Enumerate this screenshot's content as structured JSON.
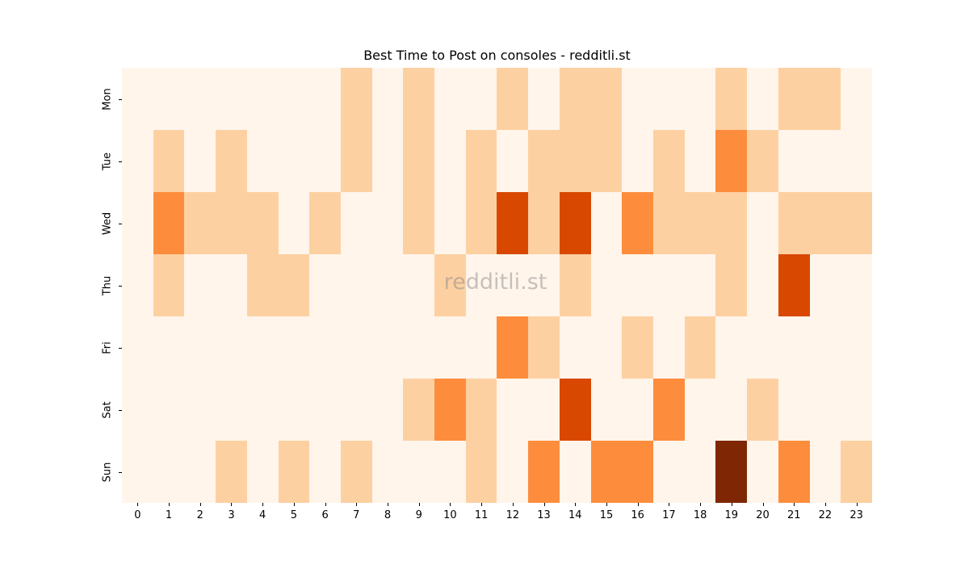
{
  "chart_data": {
    "type": "heatmap",
    "title": "Best Time to Post on consoles - redditli.st",
    "xlabel": "",
    "ylabel": "",
    "x": [
      "0",
      "1",
      "2",
      "3",
      "4",
      "5",
      "6",
      "7",
      "8",
      "9",
      "10",
      "11",
      "12",
      "13",
      "14",
      "15",
      "16",
      "17",
      "18",
      "19",
      "20",
      "21",
      "22",
      "23"
    ],
    "y": [
      "Mon",
      "Tue",
      "Wed",
      "Thu",
      "Fri",
      "Sat",
      "Sun"
    ],
    "colormap": "Oranges",
    "levels": [
      "#fff5eb",
      "#fdd0a2",
      "#fd8d3c",
      "#d94801",
      "#7f2704"
    ],
    "values": [
      [
        0,
        0,
        0,
        0,
        0,
        0,
        0,
        1,
        0,
        1,
        0,
        0,
        1,
        0,
        1,
        1,
        0,
        0,
        0,
        1,
        0,
        1,
        1,
        0
      ],
      [
        0,
        1,
        0,
        1,
        0,
        0,
        0,
        1,
        0,
        1,
        0,
        1,
        0,
        1,
        1,
        1,
        0,
        1,
        0,
        2,
        1,
        0,
        0,
        0
      ],
      [
        0,
        2,
        1,
        1,
        1,
        0,
        1,
        0,
        0,
        1,
        0,
        1,
        3,
        1,
        3,
        0,
        2,
        1,
        1,
        1,
        0,
        1,
        1,
        1
      ],
      [
        0,
        1,
        0,
        0,
        1,
        1,
        0,
        0,
        0,
        0,
        1,
        0,
        0,
        0,
        1,
        0,
        0,
        0,
        0,
        1,
        0,
        3,
        0,
        0
      ],
      [
        0,
        0,
        0,
        0,
        0,
        0,
        0,
        0,
        0,
        0,
        0,
        0,
        2,
        1,
        0,
        0,
        1,
        0,
        1,
        0,
        0,
        0,
        0,
        0
      ],
      [
        0,
        0,
        0,
        0,
        0,
        0,
        0,
        0,
        0,
        1,
        2,
        1,
        0,
        0,
        3,
        0,
        0,
        2,
        0,
        0,
        1,
        0,
        0,
        0
      ],
      [
        0,
        0,
        0,
        1,
        0,
        1,
        0,
        1,
        0,
        0,
        0,
        1,
        0,
        2,
        0,
        2,
        2,
        0,
        0,
        4,
        0,
        2,
        0,
        1
      ]
    ],
    "watermark": "redditli.st",
    "colorbar": false,
    "grid": false
  }
}
